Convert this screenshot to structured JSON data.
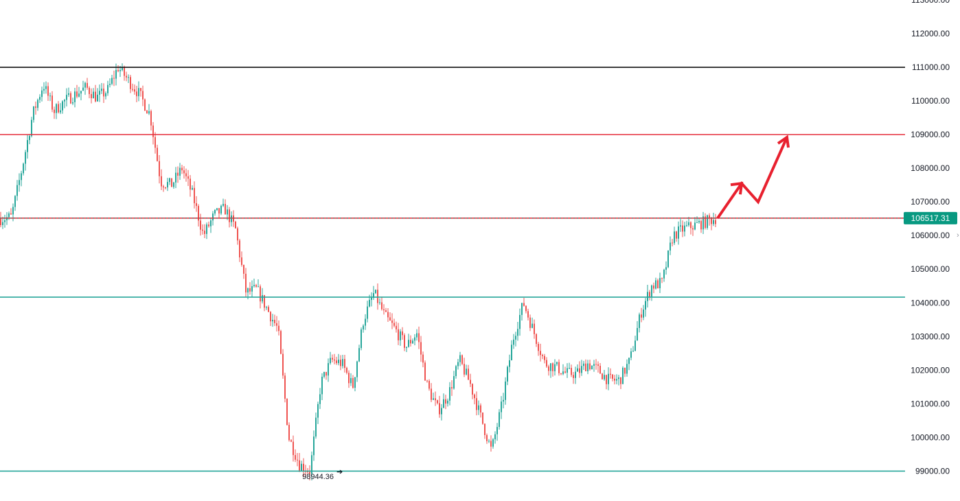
{
  "chart_data": {
    "type": "candlestick",
    "y_axis": {
      "min": 99000,
      "max": 113000,
      "ticks": [
        {
          "value": 113000,
          "label": "113000.00"
        },
        {
          "value": 112000,
          "label": "112000.00"
        },
        {
          "value": 111000,
          "label": "111000.00"
        },
        {
          "value": 110000,
          "label": "110000.00"
        },
        {
          "value": 109000,
          "label": "109000.00"
        },
        {
          "value": 108000,
          "label": "108000.00"
        },
        {
          "value": 107000,
          "label": "107000.00"
        },
        {
          "value": 106000,
          "label": "106000.00"
        },
        {
          "value": 105000,
          "label": "105000.00"
        },
        {
          "value": 104000,
          "label": "104000.00"
        },
        {
          "value": 103000,
          "label": "103000.00"
        },
        {
          "value": 102000,
          "label": "102000.00"
        },
        {
          "value": 101000,
          "label": "101000.00"
        },
        {
          "value": 100000,
          "label": "100000.00"
        },
        {
          "value": 99000,
          "label": "99000.00"
        }
      ]
    },
    "current_price": {
      "value": 106517.31,
      "label": "106517.31",
      "color": "#089981"
    },
    "low_marker": {
      "value": 98944.36,
      "label": "98944.36"
    },
    "horizontal_levels": [
      {
        "value": 111000,
        "color": "#111111"
      },
      {
        "value": 109000,
        "color": "#e5303e"
      },
      {
        "value": 106517.31,
        "color": "#e5303e"
      },
      {
        "value": 104170,
        "color": "#26a69a"
      },
      {
        "value": 99000,
        "color": "#26a69a"
      }
    ],
    "projection_arrow": {
      "color": "#e8212f",
      "points": [
        106517,
        107550,
        107000,
        108920
      ]
    },
    "price_path_anchors": [
      106500,
      106550,
      108000,
      109600,
      110500,
      109700,
      110000,
      110200,
      110400,
      110100,
      110300,
      111000,
      110600,
      110200,
      109600,
      107600,
      107500,
      108000,
      107200,
      106000,
      106600,
      106800,
      106200,
      104300,
      104400,
      103800,
      103200,
      100000,
      99200,
      99000,
      101600,
      102300,
      102200,
      101500,
      103500,
      104300,
      103600,
      103200,
      102700,
      103100,
      101500,
      100800,
      101300,
      102300,
      101600,
      100600,
      99600,
      101000,
      102900,
      104000,
      103100,
      102200,
      102100,
      101900,
      101900,
      102200,
      102000,
      101700,
      101700,
      102300,
      103700,
      104500,
      104600,
      106000,
      106200,
      106300,
      106400,
      106517
    ],
    "colors": {
      "up": "#26a69a",
      "down": "#ef5350",
      "axis_text": "#131722",
      "background": "#ffffff"
    }
  }
}
